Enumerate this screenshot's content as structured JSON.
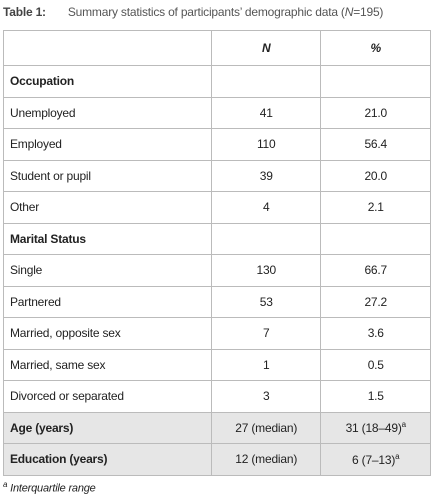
{
  "caption": {
    "label": "Table 1:",
    "text": "Summary statistics of participants’ demographic data (",
    "n_symbol": "N",
    "text_end": "=195)"
  },
  "table": {
    "columns": [
      "N",
      "%"
    ],
    "sections": [
      {
        "heading": "Occupation",
        "rows": [
          {
            "label": "Unemployed",
            "n": "41",
            "pct": "21.0"
          },
          {
            "label": "Employed",
            "n": "110",
            "pct": "56.4"
          },
          {
            "label": "Student or pupil",
            "n": "39",
            "pct": "20.0"
          },
          {
            "label": "Other",
            "n": "4",
            "pct": "2.1"
          }
        ]
      },
      {
        "heading": "Marital Status",
        "rows": [
          {
            "label": "Single",
            "n": "130",
            "pct": "66.7"
          },
          {
            "label": "Partnered",
            "n": "53",
            "pct": "27.2"
          },
          {
            "label": "Married, opposite sex",
            "n": "7",
            "pct": "3.6"
          },
          {
            "label": "Married, same sex",
            "n": "1",
            "pct": "0.5"
          },
          {
            "label": "Divorced or separated",
            "n": "3",
            "pct": "1.5"
          }
        ]
      }
    ],
    "summary_rows": [
      {
        "label": "Age (years)",
        "n": "27 (median)",
        "value": "31 (18–49)",
        "note": "a"
      },
      {
        "label": "Education (years)",
        "n": "12 (median)",
        "value": "6 (7–13)",
        "note": "a"
      }
    ]
  },
  "footnote": {
    "marker": "a",
    "text": "Interquartile range"
  }
}
